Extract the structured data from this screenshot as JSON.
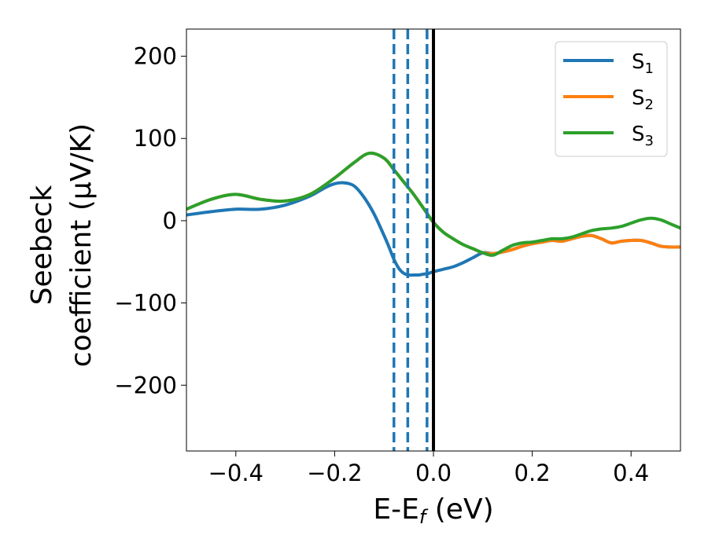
{
  "chart_data": {
    "type": "line",
    "title": "",
    "xlabel": {
      "main": "E-E",
      "sub": "f",
      "suffix": " (eV)"
    },
    "ylabel": {
      "line1": "Seebeck",
      "line2": "coefficient  (μV/K)"
    },
    "xlim": [
      -0.5,
      0.5
    ],
    "ylim": [
      -280,
      233
    ],
    "xticks": [
      -0.4,
      -0.2,
      0.0,
      0.2,
      0.4
    ],
    "xtick_labels": [
      "−0.4",
      "−0.2",
      "0.0",
      "0.2",
      "0.4"
    ],
    "yticks": [
      200,
      100,
      0,
      -100,
      -200
    ],
    "ytick_labels": [
      "200",
      "100",
      "0",
      "−100",
      "−200"
    ],
    "grid": false,
    "legend_position": "top-right",
    "series": [
      {
        "name": "S",
        "sub": "1",
        "color": "#1f77b4",
        "x": [
          -0.5,
          -0.45,
          -0.4,
          -0.35,
          -0.3,
          -0.25,
          -0.22,
          -0.2,
          -0.18,
          -0.16,
          -0.14,
          -0.12,
          -0.1,
          -0.09,
          -0.08,
          -0.07,
          -0.06,
          -0.05,
          -0.04,
          -0.03,
          -0.02,
          -0.01,
          0.0,
          0.02,
          0.04,
          0.06,
          0.08,
          0.1,
          0.12,
          0.14,
          0.16,
          0.18,
          0.2,
          0.22,
          0.24,
          0.26,
          0.28,
          0.3,
          0.32,
          0.34,
          0.36,
          0.38,
          0.4,
          0.42,
          0.44,
          0.46,
          0.48,
          0.5
        ],
        "y": [
          7,
          11,
          14,
          14,
          19,
          30,
          40,
          45,
          46,
          42,
          28,
          8,
          -18,
          -32,
          -47,
          -58,
          -64,
          -66,
          -66,
          -66,
          -65,
          -64,
          -62,
          -59,
          -56,
          -51,
          -45,
          -39,
          -40,
          -38,
          -35,
          -31,
          -28,
          -26,
          -24,
          -25,
          -22,
          -19,
          -18,
          -22,
          -27,
          -25,
          -24,
          -24,
          -27,
          -31,
          -32,
          -32
        ]
      },
      {
        "name": "S",
        "sub": "2",
        "color": "#ff7f0e",
        "x": [
          -0.5,
          -0.45,
          -0.4,
          -0.35,
          -0.3,
          -0.25,
          -0.2,
          -0.16,
          -0.13,
          -0.1,
          -0.08,
          -0.06,
          -0.04,
          -0.02,
          0.0,
          0.02,
          0.04,
          0.06,
          0.08,
          0.1,
          0.12,
          0.14,
          0.16,
          0.18,
          0.2,
          0.22,
          0.24,
          0.26,
          0.28,
          0.3,
          0.32,
          0.34,
          0.36,
          0.38,
          0.4,
          0.42,
          0.44,
          0.46,
          0.48,
          0.5
        ],
        "y": [
          14,
          26,
          32,
          26,
          24,
          32,
          52,
          71,
          82,
          76,
          62,
          47,
          32,
          15,
          -2,
          -14,
          -22,
          -29,
          -34,
          -39,
          -40,
          -38,
          -35,
          -31,
          -28,
          -26,
          -24,
          -25,
          -22,
          -19,
          -18,
          -22,
          -27,
          -25,
          -24,
          -24,
          -27,
          -31,
          -32,
          -32
        ]
      },
      {
        "name": "S",
        "sub": "3",
        "color": "#2ca02c",
        "x": [
          -0.5,
          -0.45,
          -0.4,
          -0.35,
          -0.3,
          -0.25,
          -0.2,
          -0.16,
          -0.13,
          -0.1,
          -0.08,
          -0.06,
          -0.04,
          -0.02,
          0.0,
          0.02,
          0.04,
          0.06,
          0.08,
          0.1,
          0.12,
          0.14,
          0.16,
          0.18,
          0.2,
          0.22,
          0.24,
          0.26,
          0.28,
          0.3,
          0.32,
          0.34,
          0.36,
          0.38,
          0.4,
          0.42,
          0.44,
          0.46,
          0.48,
          0.5
        ],
        "y": [
          14,
          26,
          32,
          26,
          24,
          32,
          52,
          71,
          82,
          76,
          62,
          47,
          32,
          15,
          -2,
          -14,
          -22,
          -29,
          -34,
          -39,
          -42,
          -36,
          -30,
          -27,
          -26,
          -24,
          -22,
          -22,
          -20,
          -16,
          -12,
          -10,
          -9,
          -7,
          -3,
          1,
          3,
          1,
          -4,
          -9
        ]
      }
    ],
    "vlines": [
      {
        "x": -0.08,
        "color": "#1f77b4",
        "style": "dashed"
      },
      {
        "x": -0.052,
        "color": "#1f77b4",
        "style": "dashed"
      },
      {
        "x": -0.013,
        "color": "#1f77b4",
        "style": "dashed"
      },
      {
        "x": 0.0,
        "color": "#000000",
        "style": "solid"
      }
    ]
  }
}
